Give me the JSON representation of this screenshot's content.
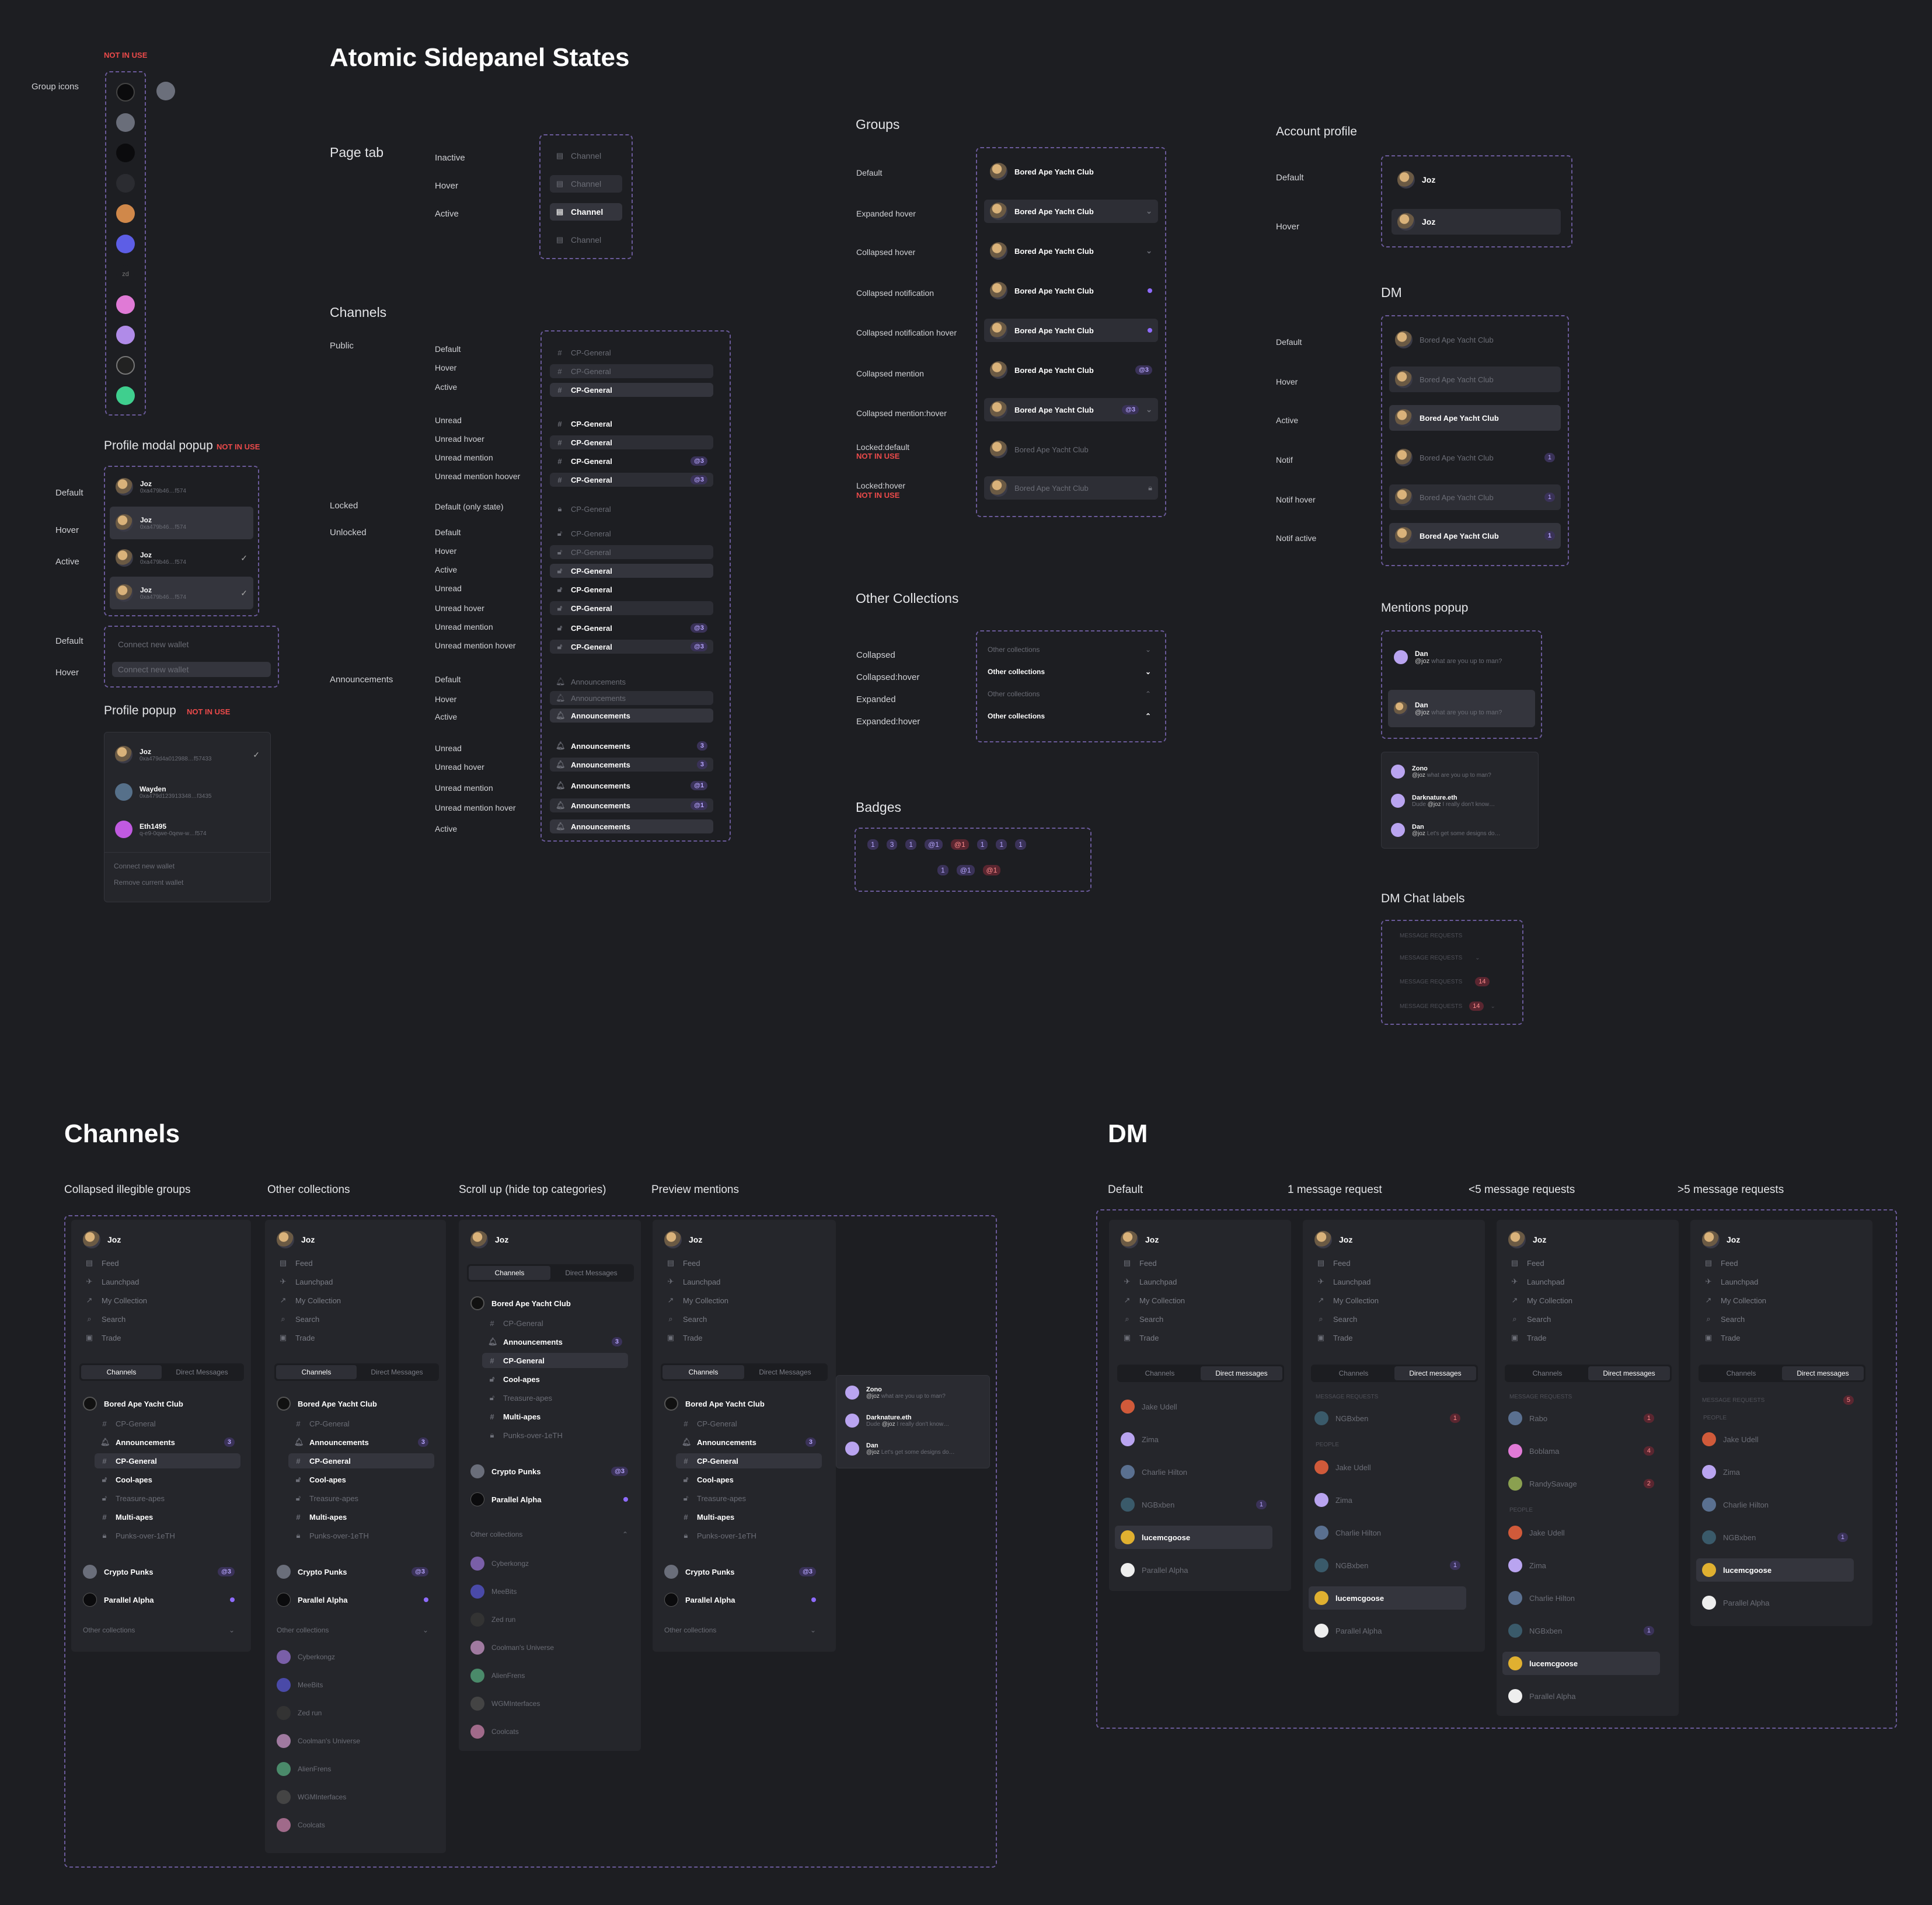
{
  "title": "Atomic Sidepanel States",
  "not_in_use": "NOT IN USE",
  "group_icons_label": "Group icons",
  "profile_modal": {
    "title": "Profile modal popup",
    "states": [
      "Default",
      "Hover",
      "Active"
    ],
    "name": "Joz",
    "addr": "0xa479b46…f574",
    "connect_states": [
      "Default",
      "Hover"
    ],
    "connect": "Connect new wallet"
  },
  "profile_popup": {
    "title": "Profile popup",
    "users": [
      {
        "name": "Joz",
        "addr": "0xa479d4a012988…f57433"
      },
      {
        "name": "Wayden",
        "addr": "0xa479d123913348…f3435"
      },
      {
        "name": "Eth1495",
        "addr": "q-e9-0qwe-0qew-w…f574"
      }
    ],
    "connect": "Connect new wallet",
    "remove": "Remove current wallet"
  },
  "page_tab": {
    "title": "Page tab",
    "states": [
      "Inactive",
      "Hover",
      "Active"
    ],
    "label": "Channel"
  },
  "channels_sec": {
    "title": "Channels",
    "public": "Public",
    "locked": "Locked",
    "unlocked": "Unlocked",
    "announcements": "Announcements",
    "public_states": [
      "Default",
      "Hover",
      "Active",
      "Unread",
      "Unread hvoer",
      "Unread mention",
      "Unread mention hoover"
    ],
    "locked_state": "Default (only state)",
    "unlocked_states": [
      "Default",
      "Hover",
      "Active",
      "Unread",
      "Unread hover",
      "Unread mention",
      "Unread mention hover"
    ],
    "ann_states": [
      "Default",
      "Hover",
      "Active",
      "Unread",
      "Unread hover",
      "Unread mention",
      "Unread mention hover",
      "Active"
    ],
    "channel": "CP-General",
    "ann": "Announcements",
    "mention": "@3",
    "ann_count": "3",
    "ann_mention": "@1"
  },
  "groups": {
    "title": "Groups",
    "states": [
      "Default",
      "Expanded hover",
      "Collapsed hover",
      "Collapsed notification",
      "Collapsed notification hover",
      "Collapsed mention",
      "Collapsed mention:hover",
      "Locked:default",
      "Locked:hover"
    ],
    "name": "Bored Ape Yacht Club",
    "mention": "@3"
  },
  "other_collections": {
    "title": "Other Collections",
    "states": [
      "Collapsed",
      "Collapsed:hover",
      "Expanded",
      "Expanded:hover"
    ],
    "label": "Other collections"
  },
  "badges": {
    "title": "Badges",
    "row1": [
      "1",
      "3",
      "1",
      "@1",
      "@1",
      "1",
      "1",
      "1"
    ],
    "row2": [
      "1",
      "@1",
      "@1"
    ]
  },
  "account": {
    "title": "Account profile",
    "states": [
      "Default",
      "Hover"
    ],
    "name": "Joz"
  },
  "dm": {
    "title": "DM",
    "states": [
      "Default",
      "Hover",
      "Active",
      "Notif",
      "Notif hover",
      "Notif active"
    ],
    "name": "Bored Ape Yacht Club",
    "count": "1"
  },
  "mentions": {
    "title": "Mentions popup",
    "items": [
      {
        "name": "Dan",
        "handle": "@joz",
        "text": "what are you up to man?"
      },
      {
        "name": "Dan",
        "handle": "@joz",
        "text": "what are you up to man?"
      }
    ],
    "list": [
      {
        "name": "Zono",
        "handle": "@joz",
        "text": "what are you up to man?"
      },
      {
        "name": "Darknature.eth",
        "pre": "Dude",
        "handle": "@joz",
        "text": "I really don't know…"
      },
      {
        "name": "Dan",
        "handle": "@joz",
        "text": "Let's get some designs do…"
      }
    ]
  },
  "dm_chat": {
    "title": "DM Chat labels",
    "label": "MESSAGE REQUESTS",
    "count": "14"
  },
  "bottom_channels": {
    "title": "Channels",
    "cols": [
      "Collapsed illegible groups",
      "Other collections",
      "Scroll up (hide top categories)",
      "Preview mentions"
    ]
  },
  "bottom_dm": {
    "title": "DM",
    "cols": [
      "Default",
      "1 message request",
      "<5 message requests",
      ">5 message requests"
    ]
  },
  "sidebar": {
    "user": "Joz",
    "nav": [
      "Feed",
      "Launchpad",
      "My Collection",
      "Search",
      "Trade"
    ],
    "tab_channels": "Channels",
    "tab_dm": "Direct Messages",
    "tab_dm2": "Direct messages",
    "group": "Bored Ape Yacht Club",
    "chans": [
      "CP-General",
      "Announcements",
      "CP-General",
      "Cool-apes",
      "Treasure-apes",
      "Multi-apes",
      "Punks-over-1eTH"
    ],
    "crypto": "Crypto Punks",
    "parallel": "Parallel Alpha",
    "other": "Other collections",
    "mention": "@3",
    "ann_count": "3",
    "collections": [
      "Cyberkongz",
      "MeeBits",
      "Zed run",
      "Coolman's Universe",
      "AlienFrens",
      "WGMInterfaces",
      "Coolcats"
    ],
    "people_label": "PEOPLE",
    "req_label": "MESSAGE REQUESTS",
    "dm_people": [
      "Jake Udell",
      "Zima",
      "Charlie Hilton",
      "NGBxben",
      "lucemcgoose",
      "Parallel Alpha"
    ],
    "req1": [
      "NGBxben"
    ],
    "req3": [
      "Rabo",
      "Boblama",
      "RandySavage"
    ],
    "req_counts": [
      "1",
      "4",
      "2"
    ],
    "req_many": "5",
    "ngb_count": "1"
  }
}
